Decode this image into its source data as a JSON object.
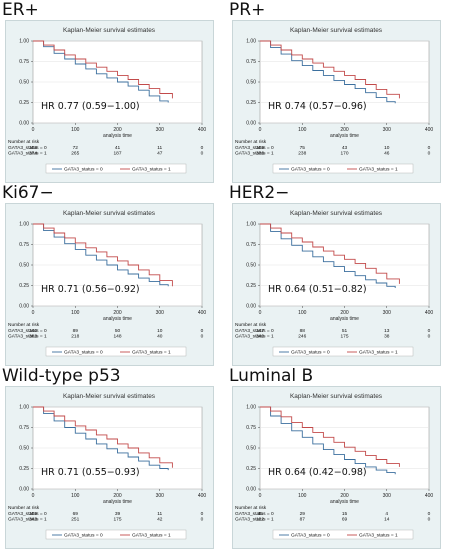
{
  "chart_data": [
    {
      "type": "line",
      "panel_label": "ER+",
      "title": "Kaplan-Meier survival estimates",
      "xlabel": "analysis time",
      "xlim": [
        0,
        400
      ],
      "ylim": [
        0.0,
        1.0
      ],
      "xticks": [
        0,
        100,
        200,
        300,
        400
      ],
      "yticks": [
        "0.00",
        "0.25",
        "0.50",
        "0.75",
        "1.00"
      ],
      "hr_text": "HR 0.77 (0.59−1.00)",
      "series": [
        {
          "name": "GATA3_status = 0",
          "color": "#3b6f9e",
          "x": [
            0,
            25,
            50,
            75,
            100,
            125,
            150,
            175,
            200,
            225,
            250,
            275,
            300,
            320
          ],
          "y": [
            1.0,
            0.93,
            0.85,
            0.78,
            0.72,
            0.66,
            0.6,
            0.55,
            0.5,
            0.45,
            0.4,
            0.33,
            0.27,
            0.25
          ]
        },
        {
          "name": "GATA3_status = 1",
          "color": "#c24a4a",
          "x": [
            0,
            25,
            50,
            75,
            100,
            125,
            150,
            175,
            200,
            225,
            250,
            275,
            300,
            330
          ],
          "y": [
            1.0,
            0.95,
            0.89,
            0.83,
            0.78,
            0.73,
            0.68,
            0.63,
            0.58,
            0.53,
            0.47,
            0.42,
            0.36,
            0.3
          ]
        }
      ],
      "risk_table": {
        "header": "Number at risk",
        "rows": [
          {
            "label": "GATA3_status = 0",
            "values": [
              "108",
              "72",
              "41",
              "11",
              "0"
            ]
          },
          {
            "label": "GATA3_status = 1",
            "values": [
              "374",
              "265",
              "187",
              "47",
              "0"
            ]
          }
        ]
      },
      "legend": [
        "GATA3_status = 0",
        "GATA3_status = 1"
      ],
      "legend_position": "bottom"
    },
    {
      "type": "line",
      "panel_label": "PR+",
      "title": "Kaplan-Meier survival estimates",
      "xlabel": "analysis time",
      "xlim": [
        0,
        400
      ],
      "ylim": [
        0.0,
        1.0
      ],
      "xticks": [
        0,
        100,
        200,
        300,
        400
      ],
      "yticks": [
        "0.00",
        "0.25",
        "0.50",
        "0.75",
        "1.00"
      ],
      "hr_text": "HR 0.74 (0.57−0.96)",
      "series": [
        {
          "name": "GATA3_status = 0",
          "color": "#3b6f9e",
          "x": [
            0,
            25,
            50,
            75,
            100,
            125,
            150,
            175,
            200,
            225,
            250,
            275,
            300,
            320
          ],
          "y": [
            1.0,
            0.92,
            0.84,
            0.76,
            0.7,
            0.64,
            0.58,
            0.52,
            0.47,
            0.42,
            0.37,
            0.31,
            0.26,
            0.24
          ]
        },
        {
          "name": "GATA3_status = 1",
          "color": "#c24a4a",
          "x": [
            0,
            25,
            50,
            75,
            100,
            125,
            150,
            175,
            200,
            225,
            250,
            275,
            300,
            330
          ],
          "y": [
            1.0,
            0.95,
            0.89,
            0.83,
            0.78,
            0.73,
            0.68,
            0.63,
            0.58,
            0.53,
            0.47,
            0.41,
            0.35,
            0.3
          ]
        }
      ],
      "risk_table": {
        "header": "Number at risk",
        "rows": [
          {
            "label": "GATA3_status = 0",
            "values": [
              "109",
              "75",
              "43",
              "10",
              "0"
            ]
          },
          {
            "label": "GATA3_status = 1",
            "values": [
              "336",
              "238",
              "170",
              "46",
              "0"
            ]
          }
        ]
      },
      "legend": [
        "GATA3_status = 0",
        "GATA3_status = 1"
      ],
      "legend_position": "bottom"
    },
    {
      "type": "line",
      "panel_label": "Ki67−",
      "title": "Kaplan-Meier survival estimates",
      "xlabel": "analysis time",
      "xlim": [
        0,
        400
      ],
      "ylim": [
        0.0,
        1.0
      ],
      "xticks": [
        0,
        100,
        200,
        300,
        400
      ],
      "yticks": [
        "0.00",
        "0.25",
        "0.50",
        "0.75",
        "1.00"
      ],
      "hr_text": "HR 0.71 (0.56−0.92)",
      "series": [
        {
          "name": "GATA3_status = 0",
          "color": "#3b6f9e",
          "x": [
            0,
            25,
            50,
            75,
            100,
            125,
            150,
            175,
            200,
            225,
            250,
            275,
            300,
            320
          ],
          "y": [
            1.0,
            0.92,
            0.84,
            0.76,
            0.69,
            0.62,
            0.56,
            0.5,
            0.44,
            0.39,
            0.34,
            0.3,
            0.26,
            0.24
          ]
        },
        {
          "name": "GATA3_status = 1",
          "color": "#c24a4a",
          "x": [
            0,
            25,
            50,
            75,
            100,
            125,
            150,
            175,
            200,
            225,
            250,
            275,
            300,
            330
          ],
          "y": [
            1.0,
            0.95,
            0.89,
            0.83,
            0.77,
            0.71,
            0.66,
            0.6,
            0.55,
            0.5,
            0.44,
            0.38,
            0.31,
            0.24
          ]
        }
      ],
      "risk_table": {
        "header": "Number at risk",
        "rows": [
          {
            "label": "GATA3_status = 0",
            "values": [
              "140",
              "89",
              "50",
              "10",
              "0"
            ]
          },
          {
            "label": "GATA3_status = 1",
            "values": [
              "303",
              "218",
              "148",
              "40",
              "0"
            ]
          }
        ]
      },
      "legend": [
        "GATA3_status = 0",
        "GATA3_status = 1"
      ],
      "legend_position": "bottom"
    },
    {
      "type": "line",
      "panel_label": "HER2−",
      "title": "Kaplan-Meier survival estimates",
      "xlabel": "analysis time",
      "xlim": [
        0,
        400
      ],
      "ylim": [
        0.0,
        1.0
      ],
      "xticks": [
        0,
        100,
        200,
        300,
        400
      ],
      "yticks": [
        "0.00",
        "0.25",
        "0.50",
        "0.75",
        "1.00"
      ],
      "hr_text": "HR 0.64 (0.51−0.82)",
      "series": [
        {
          "name": "GATA3_status = 0",
          "color": "#3b6f9e",
          "x": [
            0,
            25,
            50,
            75,
            100,
            125,
            150,
            175,
            200,
            225,
            250,
            275,
            300,
            320
          ],
          "y": [
            1.0,
            0.91,
            0.82,
            0.74,
            0.67,
            0.6,
            0.54,
            0.48,
            0.42,
            0.37,
            0.32,
            0.28,
            0.24,
            0.22
          ]
        },
        {
          "name": "GATA3_status = 1",
          "color": "#c24a4a",
          "x": [
            0,
            25,
            50,
            75,
            100,
            125,
            150,
            175,
            200,
            225,
            250,
            275,
            300,
            330
          ],
          "y": [
            1.0,
            0.95,
            0.89,
            0.83,
            0.78,
            0.72,
            0.67,
            0.62,
            0.57,
            0.52,
            0.46,
            0.4,
            0.33,
            0.27
          ]
        }
      ],
      "risk_table": {
        "header": "Number at risk",
        "rows": [
          {
            "label": "GATA3_status = 0",
            "values": [
              "147",
              "88",
              "51",
              "13",
              "0"
            ]
          },
          {
            "label": "GATA3_status = 1",
            "values": [
              "340",
              "246",
              "175",
              "38",
              "0"
            ]
          }
        ]
      },
      "legend": [
        "GATA3_status = 0",
        "GATA3_status = 1"
      ],
      "legend_position": "bottom"
    },
    {
      "type": "line",
      "panel_label": "Wild-type p53",
      "title": "Kaplan-Meier survival estimates",
      "xlabel": "analysis time",
      "xlim": [
        0,
        400
      ],
      "ylim": [
        0.0,
        1.0
      ],
      "xticks": [
        0,
        100,
        200,
        300,
        400
      ],
      "yticks": [
        "0.00",
        "0.25",
        "0.50",
        "0.75",
        "1.00"
      ],
      "hr_text": "HR 0.71 (0.55−0.93)",
      "series": [
        {
          "name": "GATA3_status = 0",
          "color": "#3b6f9e",
          "x": [
            0,
            25,
            50,
            75,
            100,
            125,
            150,
            175,
            200,
            225,
            250,
            275,
            300,
            320
          ],
          "y": [
            1.0,
            0.92,
            0.83,
            0.75,
            0.68,
            0.61,
            0.55,
            0.49,
            0.44,
            0.39,
            0.34,
            0.29,
            0.25,
            0.23
          ]
        },
        {
          "name": "GATA3_status = 1",
          "color": "#c24a4a",
          "x": [
            0,
            25,
            50,
            75,
            100,
            125,
            150,
            175,
            200,
            225,
            250,
            275,
            300,
            330
          ],
          "y": [
            1.0,
            0.95,
            0.89,
            0.83,
            0.77,
            0.72,
            0.66,
            0.61,
            0.55,
            0.5,
            0.44,
            0.38,
            0.32,
            0.26
          ]
        }
      ],
      "risk_table": {
        "header": "Number at risk",
        "rows": [
          {
            "label": "GATA3_status = 0",
            "values": [
              "109",
              "69",
              "39",
              "11",
              "0"
            ]
          },
          {
            "label": "GATA3_status = 1",
            "values": [
              "343",
              "251",
              "175",
              "42",
              "0"
            ]
          }
        ]
      },
      "legend": [
        "GATA3_status = 0",
        "GATA3_status = 1"
      ],
      "legend_position": "bottom"
    },
    {
      "type": "line",
      "panel_label": "Luminal B",
      "title": "Kaplan-Meier survival estimates",
      "xlabel": "analysis time",
      "xlim": [
        0,
        400
      ],
      "ylim": [
        0.0,
        1.0
      ],
      "xticks": [
        0,
        100,
        200,
        300,
        400
      ],
      "yticks": [
        "0.00",
        "0.25",
        "0.50",
        "0.75",
        "1.00"
      ],
      "hr_text": "HR 0.64 (0.42−0.98)",
      "series": [
        {
          "name": "GATA3_status = 0",
          "color": "#3b6f9e",
          "x": [
            0,
            25,
            50,
            75,
            100,
            125,
            150,
            175,
            200,
            225,
            250,
            275,
            300,
            320
          ],
          "y": [
            1.0,
            0.89,
            0.8,
            0.71,
            0.63,
            0.55,
            0.48,
            0.42,
            0.36,
            0.31,
            0.27,
            0.23,
            0.2,
            0.18
          ]
        },
        {
          "name": "GATA3_status = 1",
          "color": "#c24a4a",
          "x": [
            0,
            25,
            50,
            75,
            100,
            125,
            150,
            175,
            200,
            225,
            250,
            275,
            300,
            330
          ],
          "y": [
            1.0,
            0.95,
            0.88,
            0.81,
            0.75,
            0.69,
            0.63,
            0.57,
            0.51,
            0.46,
            0.41,
            0.36,
            0.31,
            0.27
          ]
        }
      ],
      "risk_table": {
        "header": "Number at risk",
        "rows": [
          {
            "label": "GATA3_status = 0",
            "values": [
              "45",
              "29",
              "15",
              "4",
              "0"
            ]
          },
          {
            "label": "GATA3_status = 1",
            "values": [
              "122",
              "87",
              "69",
              "14",
              "0"
            ]
          }
        ]
      },
      "legend": [
        "GATA3_status = 0",
        "GATA3_status = 1"
      ],
      "legend_position": "bottom"
    }
  ]
}
